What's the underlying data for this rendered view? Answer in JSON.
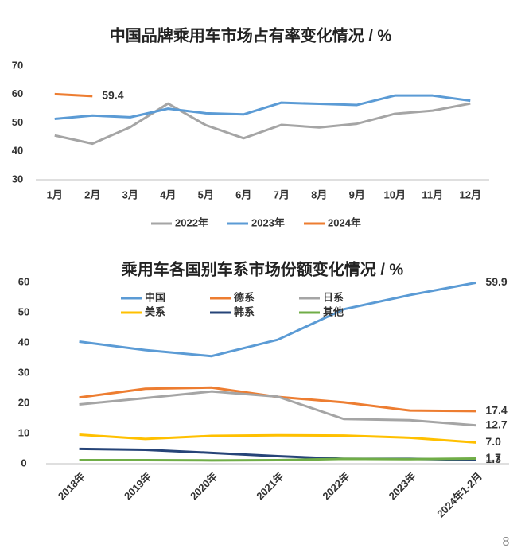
{
  "chart_data": [
    {
      "type": "line",
      "title": "中国品牌乘用车市场占有率变化情况 / %",
      "categories": [
        "1月",
        "2月",
        "3月",
        "4月",
        "5月",
        "6月",
        "7月",
        "8月",
        "9月",
        "10月",
        "11月",
        "12月"
      ],
      "series": [
        {
          "name": "2022年",
          "color": "#a5a5a5",
          "values": [
            45.6,
            42.7,
            48.5,
            56.8,
            49.2,
            44.6,
            49.3,
            48.4,
            49.7,
            53.2,
            54.3,
            56.8
          ]
        },
        {
          "name": "2023年",
          "color": "#5b9bd5",
          "values": [
            51.4,
            52.6,
            52.0,
            55.0,
            53.4,
            53.0,
            57.1,
            56.7,
            56.3,
            59.6,
            59.6,
            57.8
          ]
        },
        {
          "name": "2024年",
          "color": "#ed7d31",
          "values": [
            60.1,
            59.4,
            null,
            null,
            null,
            null,
            null,
            null,
            null,
            null,
            null,
            null
          ],
          "value_labels": [
            null,
            "59.4",
            null,
            null,
            null,
            null,
            null,
            null,
            null,
            null,
            null,
            null
          ]
        }
      ],
      "ylim": [
        30,
        70
      ],
      "yticks": [
        30,
        40,
        50,
        60,
        70
      ],
      "legend": "bottom",
      "grid": false
    },
    {
      "type": "line",
      "title": "乘用车各国别车系市场份额变化情况 / %",
      "categories": [
        "2018年",
        "2019年",
        "2020年",
        "2021年",
        "2022年",
        "2023年",
        "2024年1-2月"
      ],
      "series": [
        {
          "name": "中国",
          "color": "#5b9bd5",
          "values": [
            40.4,
            37.6,
            35.6,
            41.0,
            51.1,
            55.8,
            59.9
          ],
          "value_labels": [
            null,
            null,
            null,
            null,
            null,
            null,
            "59.9"
          ]
        },
        {
          "name": "德系",
          "color": "#ed7d31",
          "values": [
            21.9,
            24.8,
            25.2,
            22.1,
            20.3,
            17.6,
            17.4
          ],
          "value_labels": [
            null,
            null,
            null,
            null,
            null,
            null,
            "17.4"
          ]
        },
        {
          "name": "日系",
          "color": "#a5a5a5",
          "values": [
            19.6,
            21.7,
            23.9,
            22.2,
            14.8,
            14.4,
            12.7
          ],
          "value_labels": [
            null,
            null,
            null,
            null,
            null,
            null,
            "12.7"
          ]
        },
        {
          "name": "美系",
          "color": "#ffc000",
          "values": [
            9.6,
            8.2,
            9.2,
            9.4,
            9.3,
            8.6,
            7.0
          ],
          "value_labels": [
            null,
            null,
            null,
            null,
            null,
            null,
            "7.0"
          ]
        },
        {
          "name": "韩系",
          "color": "#264478",
          "values": [
            4.9,
            4.6,
            3.6,
            2.5,
            1.6,
            1.6,
            1.3
          ],
          "value_labels": [
            null,
            null,
            null,
            null,
            null,
            null,
            "1.3"
          ]
        },
        {
          "name": "其他",
          "color": "#70ad47",
          "values": [
            1.2,
            1.2,
            1.1,
            1.2,
            1.6,
            1.5,
            1.7
          ],
          "value_labels": [
            null,
            null,
            null,
            null,
            null,
            null,
            "1.7"
          ]
        }
      ],
      "ylim": [
        0,
        60
      ],
      "yticks": [
        0,
        10,
        20,
        30,
        40,
        50,
        60
      ],
      "legend": "top-left",
      "grid": false
    }
  ],
  "page_number": "8"
}
